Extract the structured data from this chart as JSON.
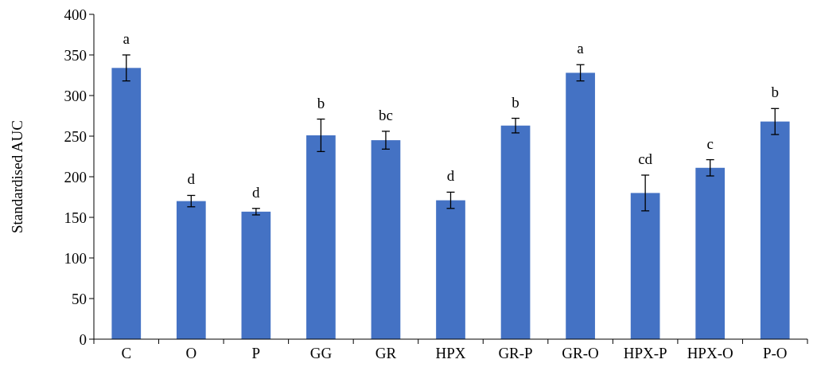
{
  "chart_data": {
    "type": "bar",
    "ylabel": "Standardised AUC",
    "categories": [
      "C",
      "O",
      "P",
      "GG",
      "GR",
      "HPX",
      "GR-P",
      "GR-O",
      "HPX-P",
      "HPX-O",
      "P-O"
    ],
    "values": [
      334,
      170,
      157,
      251,
      245,
      171,
      263,
      328,
      180,
      211,
      268
    ],
    "errors": [
      16,
      7,
      4,
      20,
      11,
      10,
      9,
      10,
      22,
      10,
      16
    ],
    "color": "#4472c4",
    "ylim": [
      0,
      400
    ],
    "yticks": [
      0,
      50,
      100,
      150,
      200,
      250,
      300,
      350,
      400
    ],
    "grid": false,
    "annotations": [
      {
        "text": "a",
        "x": "C",
        "y": 350
      },
      {
        "text": "d",
        "x": "O",
        "y": 177
      },
      {
        "text": "d",
        "x": "P",
        "y": 161
      },
      {
        "text": "b",
        "x": "GG",
        "y": 271
      },
      {
        "text": "bc",
        "x": "GR",
        "y": 256
      },
      {
        "text": "d",
        "x": "HPX",
        "y": 181
      },
      {
        "text": "b",
        "x": "GR-P",
        "y": 272
      },
      {
        "text": "a",
        "x": "GR-O",
        "y": 338
      },
      {
        "text": "cd",
        "x": "HPX-P",
        "y": 202
      },
      {
        "text": "c",
        "x": "HPX-O",
        "y": 221
      },
      {
        "text": "b",
        "x": "P-O",
        "y": 284
      }
    ]
  }
}
